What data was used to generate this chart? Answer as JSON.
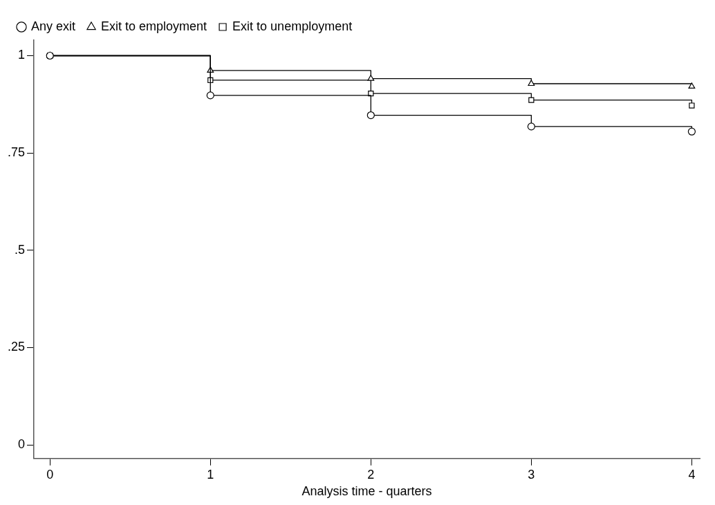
{
  "chart_data": {
    "type": "step",
    "xlabel": "Analysis time - quarters",
    "x": [
      0,
      1,
      2,
      3,
      4
    ],
    "series": [
      {
        "name": "Any exit",
        "color": "#000000",
        "marker": "circle",
        "values": [
          1,
          0.898,
          0.847,
          0.818,
          0.805
        ]
      },
      {
        "name": "Exit to employment",
        "color": "#000000",
        "marker": "triangle",
        "values": [
          1,
          0.962,
          0.941,
          0.928,
          0.921
        ]
      },
      {
        "name": "Exit to unemployment",
        "color": "#000000",
        "marker": "square",
        "values": [
          1,
          0.937,
          0.903,
          0.886,
          0.872
        ]
      }
    ],
    "xlim": [
      -0.1,
      4.05
    ],
    "xticks": [
      0,
      1,
      2,
      3,
      4
    ],
    "ylim": [
      -0.035,
      1.04
    ],
    "yticks": [
      0,
      {
        "value": 0.25,
        "label": ".25"
      },
      {
        "value": 0.5,
        "label": ".5"
      },
      {
        "value": 0.75,
        "label": ".75"
      },
      1
    ],
    "grid": false,
    "legend": "top",
    "line_style": "solid"
  }
}
